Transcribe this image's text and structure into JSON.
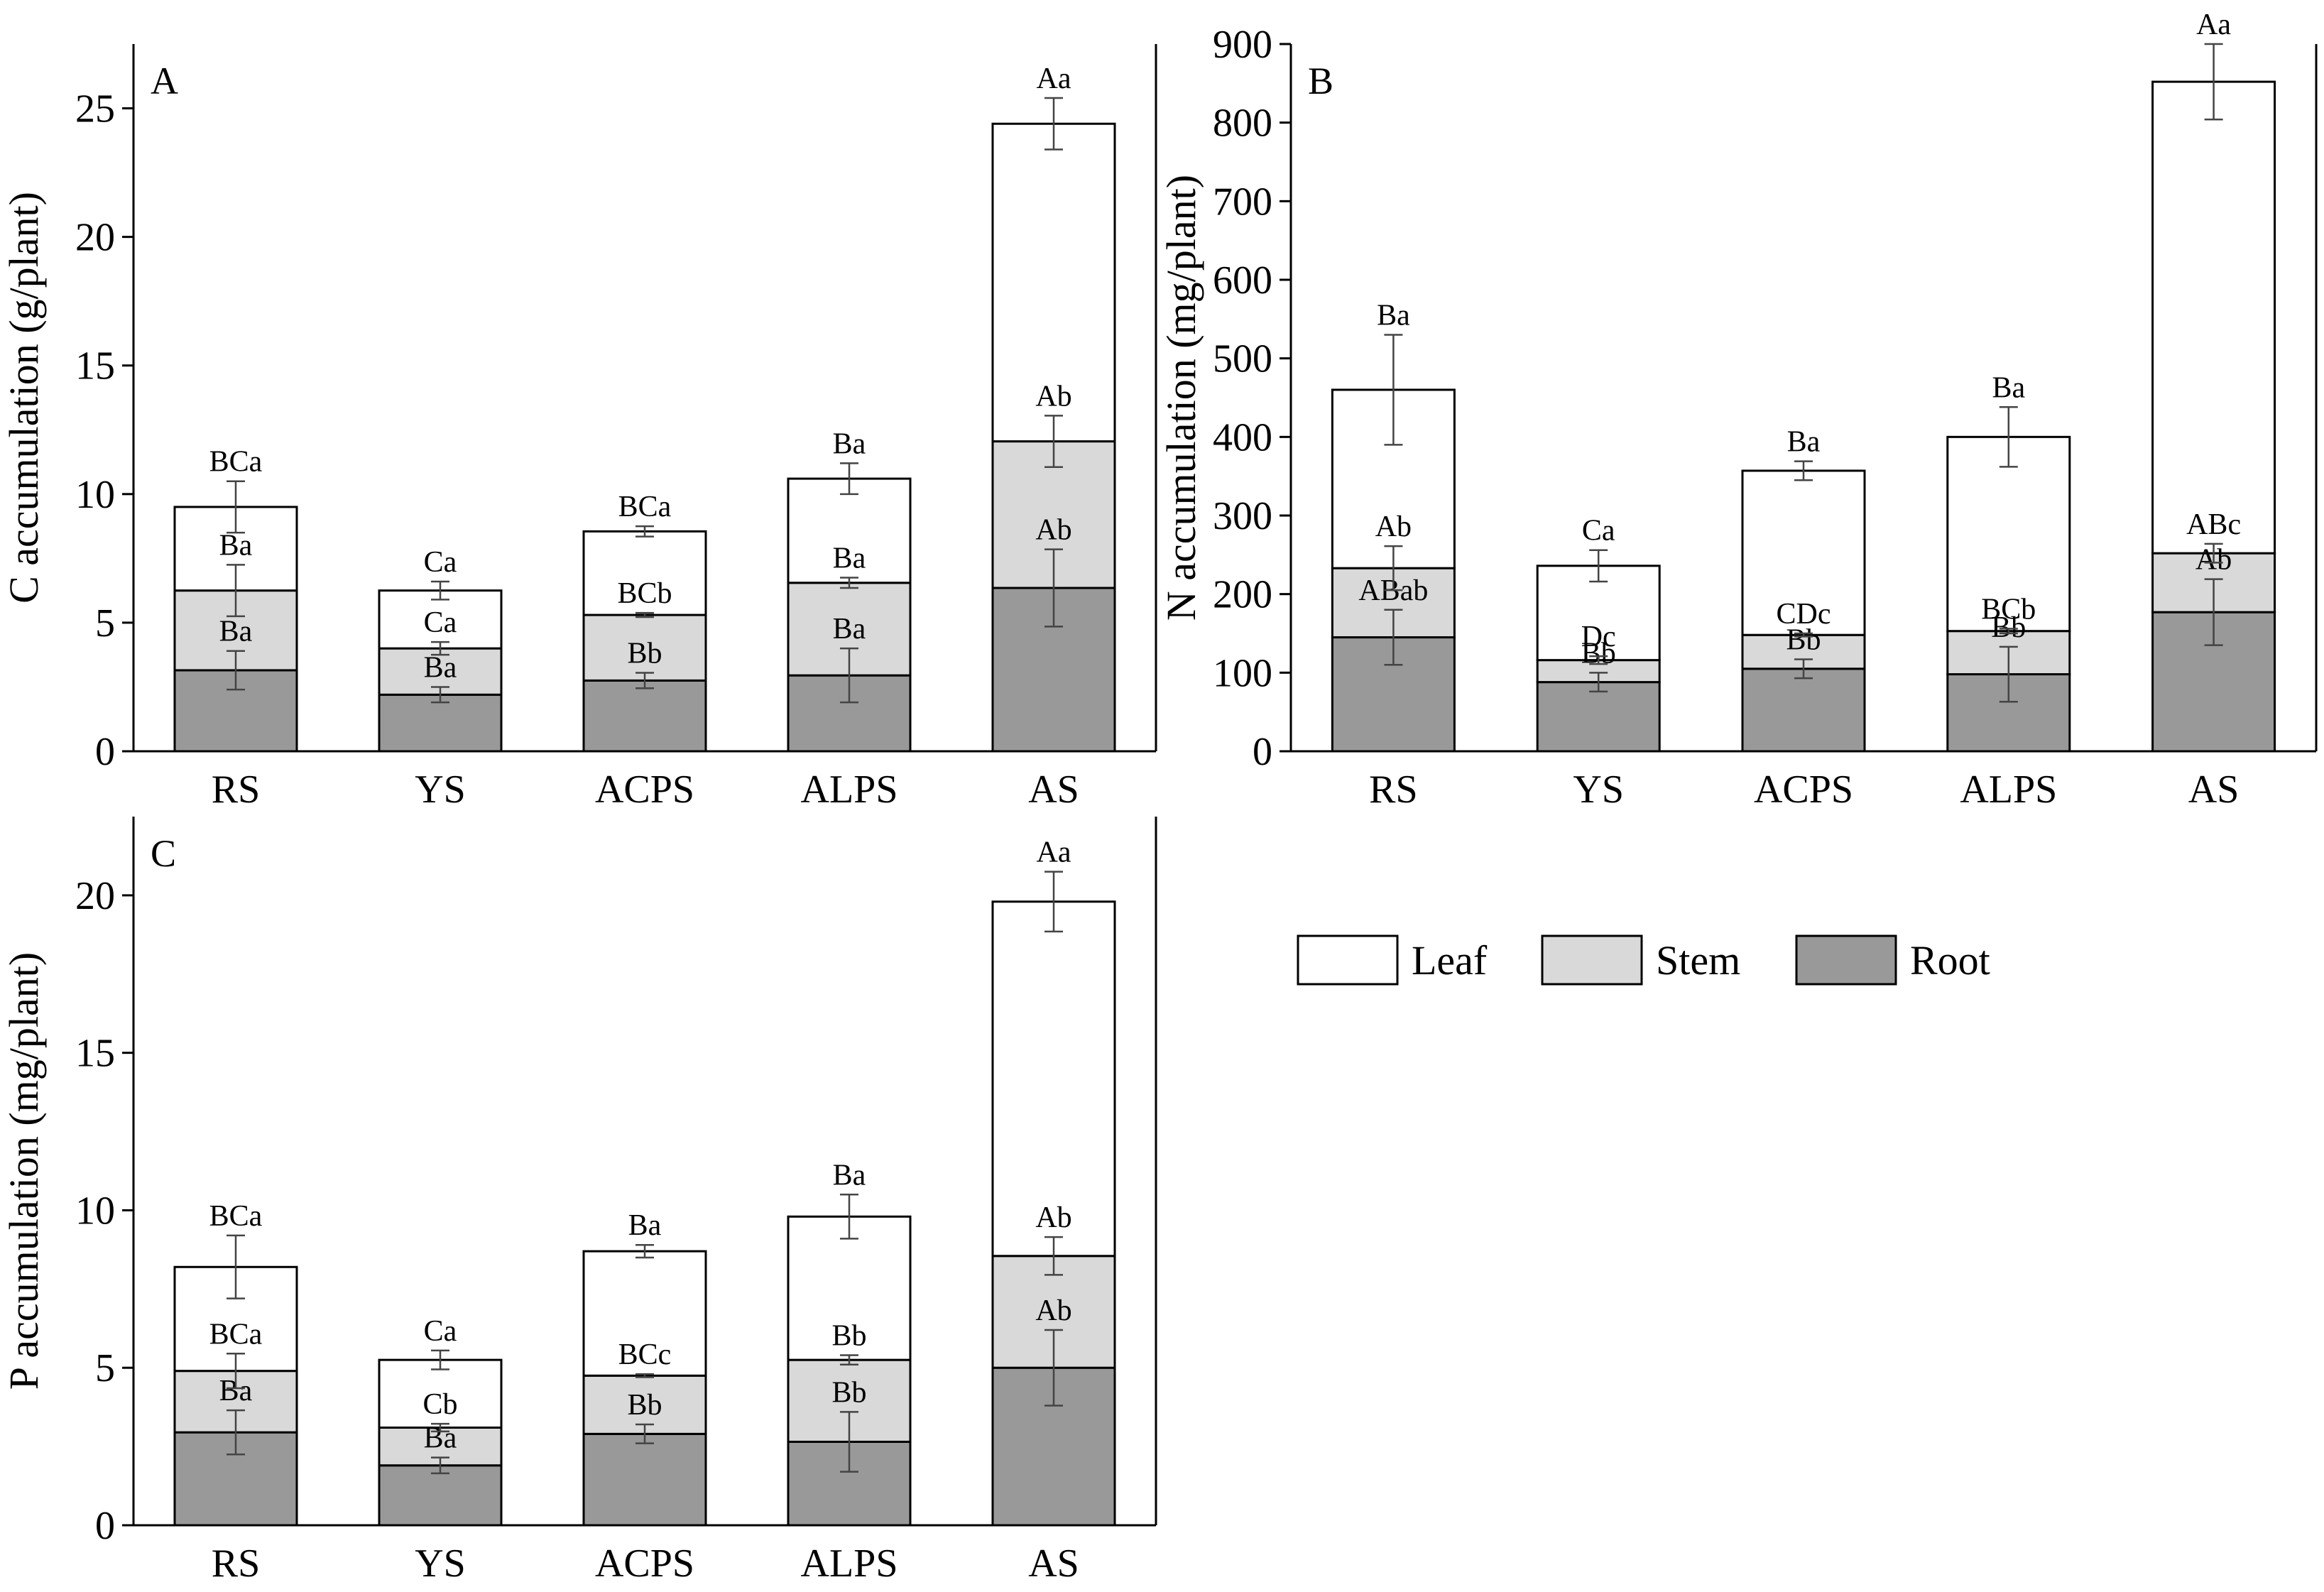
{
  "colors": {
    "leaf": "#ffffff",
    "stem": "#d9d9d9",
    "root": "#999999"
  },
  "legend": [
    {
      "key": "leaf",
      "label": "Leaf"
    },
    {
      "key": "stem",
      "label": "Stem"
    },
    {
      "key": "root",
      "label": "Root"
    }
  ],
  "chart_data": [
    {
      "type": "bar",
      "stacked": true,
      "panel": "A",
      "title": "",
      "xlabel": "",
      "ylabel": "C accumulation (g/plant)",
      "ylim": [
        0,
        27.5
      ],
      "yticks": [
        0,
        5,
        10,
        15,
        20,
        25
      ],
      "categories": [
        "RS",
        "YS",
        "ACPS",
        "ALPS",
        "AS"
      ],
      "series": [
        {
          "name": "Root",
          "key": "root",
          "values": [
            3.15,
            2.2,
            2.75,
            2.95,
            6.35
          ],
          "errors": [
            0.75,
            0.3,
            0.3,
            1.05,
            1.5
          ],
          "labels": [
            "Ba",
            "Ba",
            "Bb",
            "Ba",
            "Ab"
          ]
        },
        {
          "name": "Stem",
          "key": "stem",
          "values": [
            3.1,
            1.8,
            2.55,
            3.6,
            5.7
          ],
          "errors": [
            1.0,
            0.25,
            0.08,
            0.2,
            1.0
          ],
          "labels": [
            "Ba",
            "Ca",
            "BCb",
            "Ba",
            "Ab"
          ]
        },
        {
          "name": "Leaf",
          "key": "leaf",
          "values": [
            3.25,
            2.25,
            3.25,
            4.05,
            12.35
          ],
          "errors": [
            1.0,
            0.35,
            0.2,
            0.6,
            1.0
          ],
          "labels": [
            "BCa",
            "Ca",
            "BCa",
            "Ba",
            "Aa"
          ]
        }
      ]
    },
    {
      "type": "bar",
      "stacked": true,
      "panel": "B",
      "title": "",
      "xlabel": "",
      "ylabel": "N accumulation (mg/plant)",
      "ylim": [
        0,
        900
      ],
      "yticks": [
        0,
        100,
        200,
        300,
        400,
        500,
        600,
        700,
        800,
        900
      ],
      "categories": [
        "RS",
        "YS",
        "ACPS",
        "ALPS",
        "AS"
      ],
      "series": [
        {
          "name": "Root",
          "key": "root",
          "values": [
            145,
            88,
            105,
            98,
            177
          ],
          "errors": [
            35,
            12,
            12,
            35,
            42
          ],
          "labels": [
            "ABab",
            "Bb",
            "Bb",
            "Bb",
            "Ab"
          ]
        },
        {
          "name": "Stem",
          "key": "stem",
          "values": [
            88,
            28,
            43,
            55,
            75
          ],
          "errors": [
            28,
            5,
            2,
            3,
            12
          ],
          "labels": [
            "Ab",
            "Dc",
            "CDc",
            "BCb",
            "ABc"
          ]
        },
        {
          "name": "Leaf",
          "key": "leaf",
          "values": [
            227,
            120,
            209,
            247,
            600
          ],
          "errors": [
            70,
            20,
            12,
            38,
            48
          ],
          "labels": [
            "Ba",
            "Ca",
            "Ba",
            "Ba",
            "Aa"
          ]
        }
      ]
    },
    {
      "type": "bar",
      "stacked": true,
      "panel": "C",
      "title": "",
      "xlabel": "",
      "ylabel": "P accumulation (mg/plant)",
      "ylim": [
        0,
        22.5
      ],
      "yticks": [
        0,
        5,
        10,
        15,
        20
      ],
      "categories": [
        "RS",
        "YS",
        "ACPS",
        "ALPS",
        "AS"
      ],
      "series": [
        {
          "name": "Root",
          "key": "root",
          "values": [
            2.95,
            1.9,
            2.9,
            2.65,
            5.0
          ],
          "errors": [
            0.7,
            0.25,
            0.3,
            0.95,
            1.2
          ],
          "labels": [
            "Ba",
            "Ba",
            "Bb",
            "Bb",
            "Ab"
          ]
        },
        {
          "name": "Stem",
          "key": "stem",
          "values": [
            1.95,
            1.2,
            1.85,
            2.6,
            3.55
          ],
          "errors": [
            0.55,
            0.12,
            0.05,
            0.15,
            0.6
          ],
          "labels": [
            "BCa",
            "Cb",
            "BCc",
            "Bb",
            "Ab"
          ]
        },
        {
          "name": "Leaf",
          "key": "leaf",
          "values": [
            3.3,
            2.15,
            3.95,
            4.55,
            11.25
          ],
          "errors": [
            1.0,
            0.3,
            0.2,
            0.7,
            0.95
          ],
          "labels": [
            "BCa",
            "Ca",
            "Ba",
            "Ba",
            "Aa"
          ]
        }
      ]
    }
  ]
}
